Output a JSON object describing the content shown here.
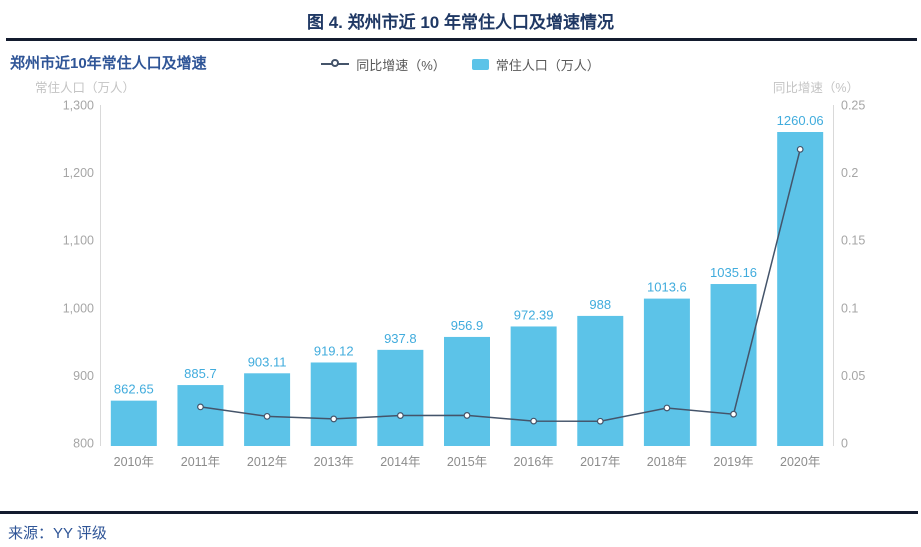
{
  "page": {
    "title": "图 4. 郑州市近 10 年常住人口及增速情况",
    "source": "来源：YY 评级"
  },
  "chart": {
    "title": "郑州市近10年常住人口及增速",
    "legend": [
      {
        "marker": "line-circle-marker",
        "label": "同比增速（%）"
      },
      {
        "marker": "bar-swatch",
        "label": "常住人口（万人）"
      }
    ],
    "left_axis_title": "常住人口（万人）",
    "right_axis_title": "同比增速（%）"
  },
  "chart_data": {
    "type": "bar",
    "title": "郑州市近10年常住人口及增速",
    "categories": [
      "2010年",
      "2011年",
      "2012年",
      "2013年",
      "2014年",
      "2015年",
      "2016年",
      "2017年",
      "2018年",
      "2019年",
      "2020年"
    ],
    "series": [
      {
        "name": "常住人口（万人）",
        "type": "bar",
        "axis": "left",
        "values": [
          862.65,
          885.7,
          903.11,
          919.12,
          937.8,
          956.9,
          972.39,
          988,
          1013.6,
          1035.16,
          1260.06
        ],
        "labels": [
          "862.65",
          "885.7",
          "903.11",
          "919.12",
          "937.8",
          "956.9",
          "972.39",
          "988",
          "1013.6",
          "1035.16",
          "1260.06"
        ],
        "color": "#5CC3E8",
        "label_color": "#41ACDD"
      },
      {
        "name": "同比增速（%）",
        "type": "line",
        "axis": "right",
        "values": [
          null,
          0.0267,
          0.0197,
          0.0178,
          0.0203,
          0.0204,
          0.0162,
          0.0161,
          0.0259,
          0.0213,
          0.2172
        ],
        "color": "#44546A"
      }
    ],
    "left_axis": {
      "title": "常住人口（万人）",
      "min": 800,
      "max": 1300,
      "ticks": [
        "1,300",
        "1,200",
        "1,100",
        "1,000",
        "900",
        "800"
      ]
    },
    "right_axis": {
      "title": "同比增速（%）",
      "min": 0,
      "max": 0.25,
      "ticks": [
        "0.25",
        "0.2",
        "0.15",
        "0.1",
        "0.05",
        "0"
      ]
    },
    "grid": false,
    "legend_position": "top-center"
  },
  "colors": {
    "bar": "#5CC3E8",
    "bar_label": "#41ACDD",
    "line": "#44546A",
    "title": "#1F3864",
    "chart_title": "#2F5597",
    "source": "#2F5597",
    "rule": "#131B2E",
    "axis_line": "#D9D9D9",
    "tick_text": "#A6A6A6",
    "xlabel_text": "#8C8C8C",
    "axis_title_text": "#C4C4C4",
    "legend_text": "#595959"
  }
}
